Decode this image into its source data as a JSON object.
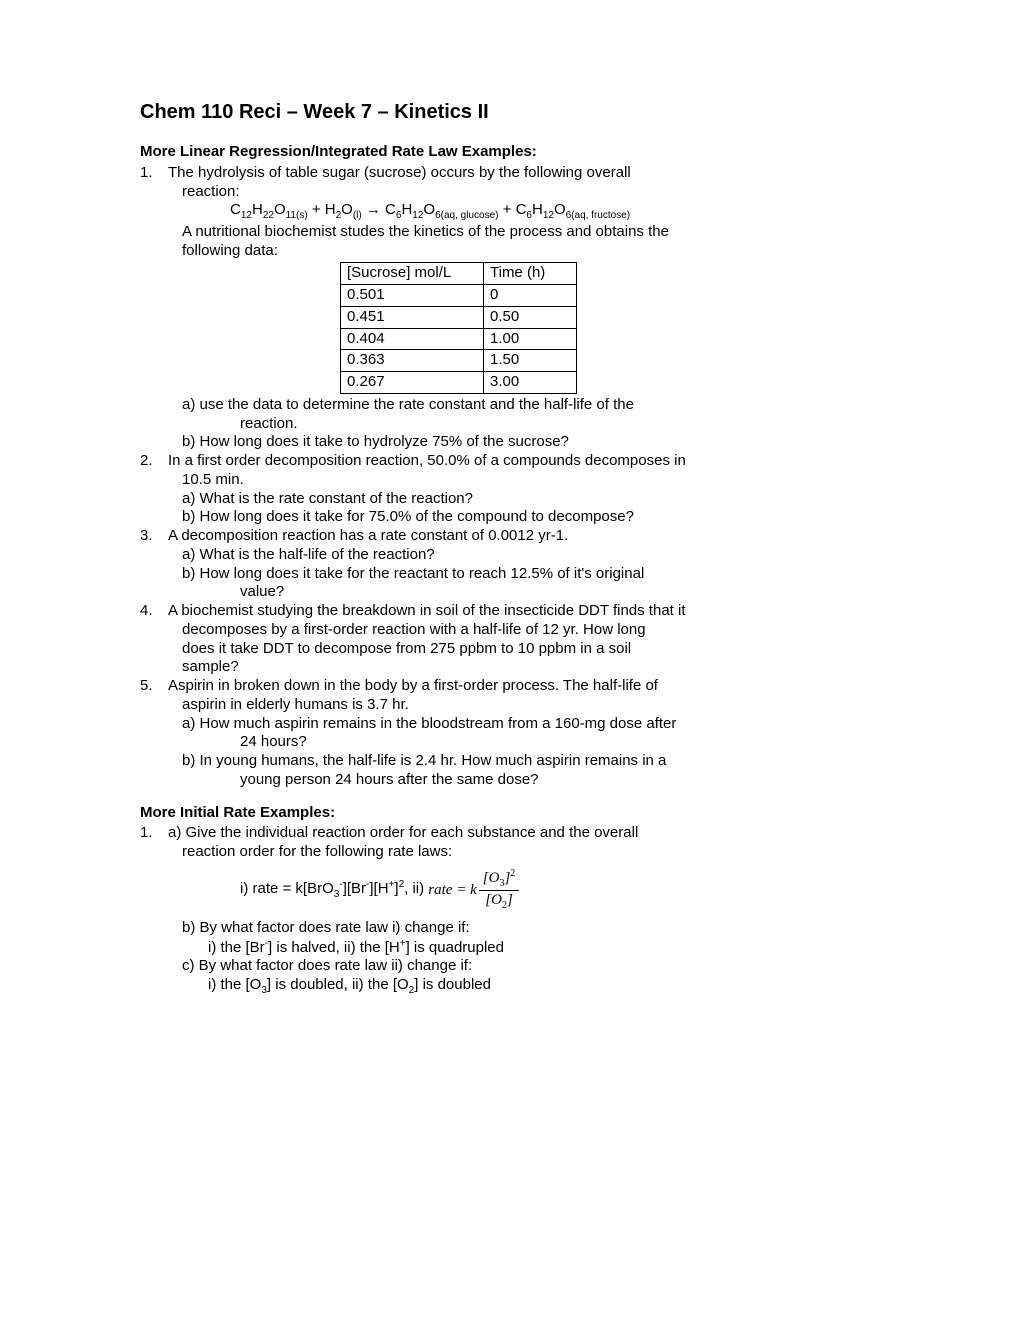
{
  "title": "Chem 110 Reci – Week 7 – Kinetics II",
  "section1": {
    "heading": "More Linear Regression/Integrated Rate Law Examples:",
    "q1": {
      "num": "1.",
      "intro1": "The hydrolysis of table sugar (sucrose) occurs by the following overall",
      "intro2": "reaction:",
      "eq_pre": "C",
      "post": "A nutritional biochemist studes the kinetics of the process and obtains the",
      "post2": "following data:",
      "table": {
        "h1": "[Sucrose] mol/L",
        "h2": "Time (h)",
        "rows": [
          [
            "0.501",
            "0"
          ],
          [
            "0.451",
            "0.50"
          ],
          [
            "0.404",
            "1.00"
          ],
          [
            "0.363",
            "1.50"
          ],
          [
            "0.267",
            "3.00"
          ]
        ]
      },
      "a1": "a) use the data to determine the rate constant and the half-life of the",
      "a2": "reaction.",
      "b": "b) How long does it take to hydrolyze 75% of the sucrose?"
    },
    "q2": {
      "num": "2.",
      "l1": "In a first order decomposition reaction, 50.0% of a compounds decomposes in",
      "l2": "10.5 min.",
      "a": "a) What is the rate constant of the reaction?",
      "b": "b) How long does it take for 75.0% of the compound to decompose?"
    },
    "q3": {
      "num": "3.",
      "l1": "A decomposition reaction has a rate constant of 0.0012 yr-1.",
      "a": "a) What is the half-life of the reaction?",
      "b1": "b) How long does it take for the reactant to reach 12.5% of it's original",
      "b2": "value?"
    },
    "q4": {
      "num": "4.",
      "l1": "A biochemist studying the breakdown in soil of the insecticide DDT finds that it",
      "l2": "decomposes by a first-order reaction with a half-life of 12 yr.  How long",
      "l3": "does it take DDT to decompose from 275 ppbm to 10 ppbm in a soil",
      "l4": "sample?"
    },
    "q5": {
      "num": "5.",
      "l1": "Aspirin in broken down in the body by a first-order process.  The half-life of",
      "l2": "aspirin in elderly humans is 3.7 hr.",
      "a1": "a) How much aspirin remains in the bloodstream from a 160-mg dose after",
      "a2": "24 hours?",
      "b1": "b) In young humans, the half-life is 2.4 hr.  How much aspirin remains in a",
      "b2": "young person 24 hours after the same dose?"
    }
  },
  "section2": {
    "heading": "More Initial Rate Examples:",
    "q1": {
      "num": "1.",
      "l1": "a) Give the individual reaction order for each substance and the overall",
      "l2": "reaction order for the following rate laws:",
      "eq_i_prefix": "i) rate = k[BrO",
      "eq_ii_prefix": ", ii)",
      "rate_eq": "rate = k",
      "b": "b) By what factor does rate law i) change if:",
      "bi": "i) the [Br",
      "bi_mid": "] is halved, ii) the [H",
      "bi_end": "] is quadrupled",
      "c": "c) By what factor does rate law ii) change if:",
      "ci": "i) the [O",
      "ci_mid": "] is doubled, ii) the [O",
      "ci_end": "] is doubled"
    }
  }
}
